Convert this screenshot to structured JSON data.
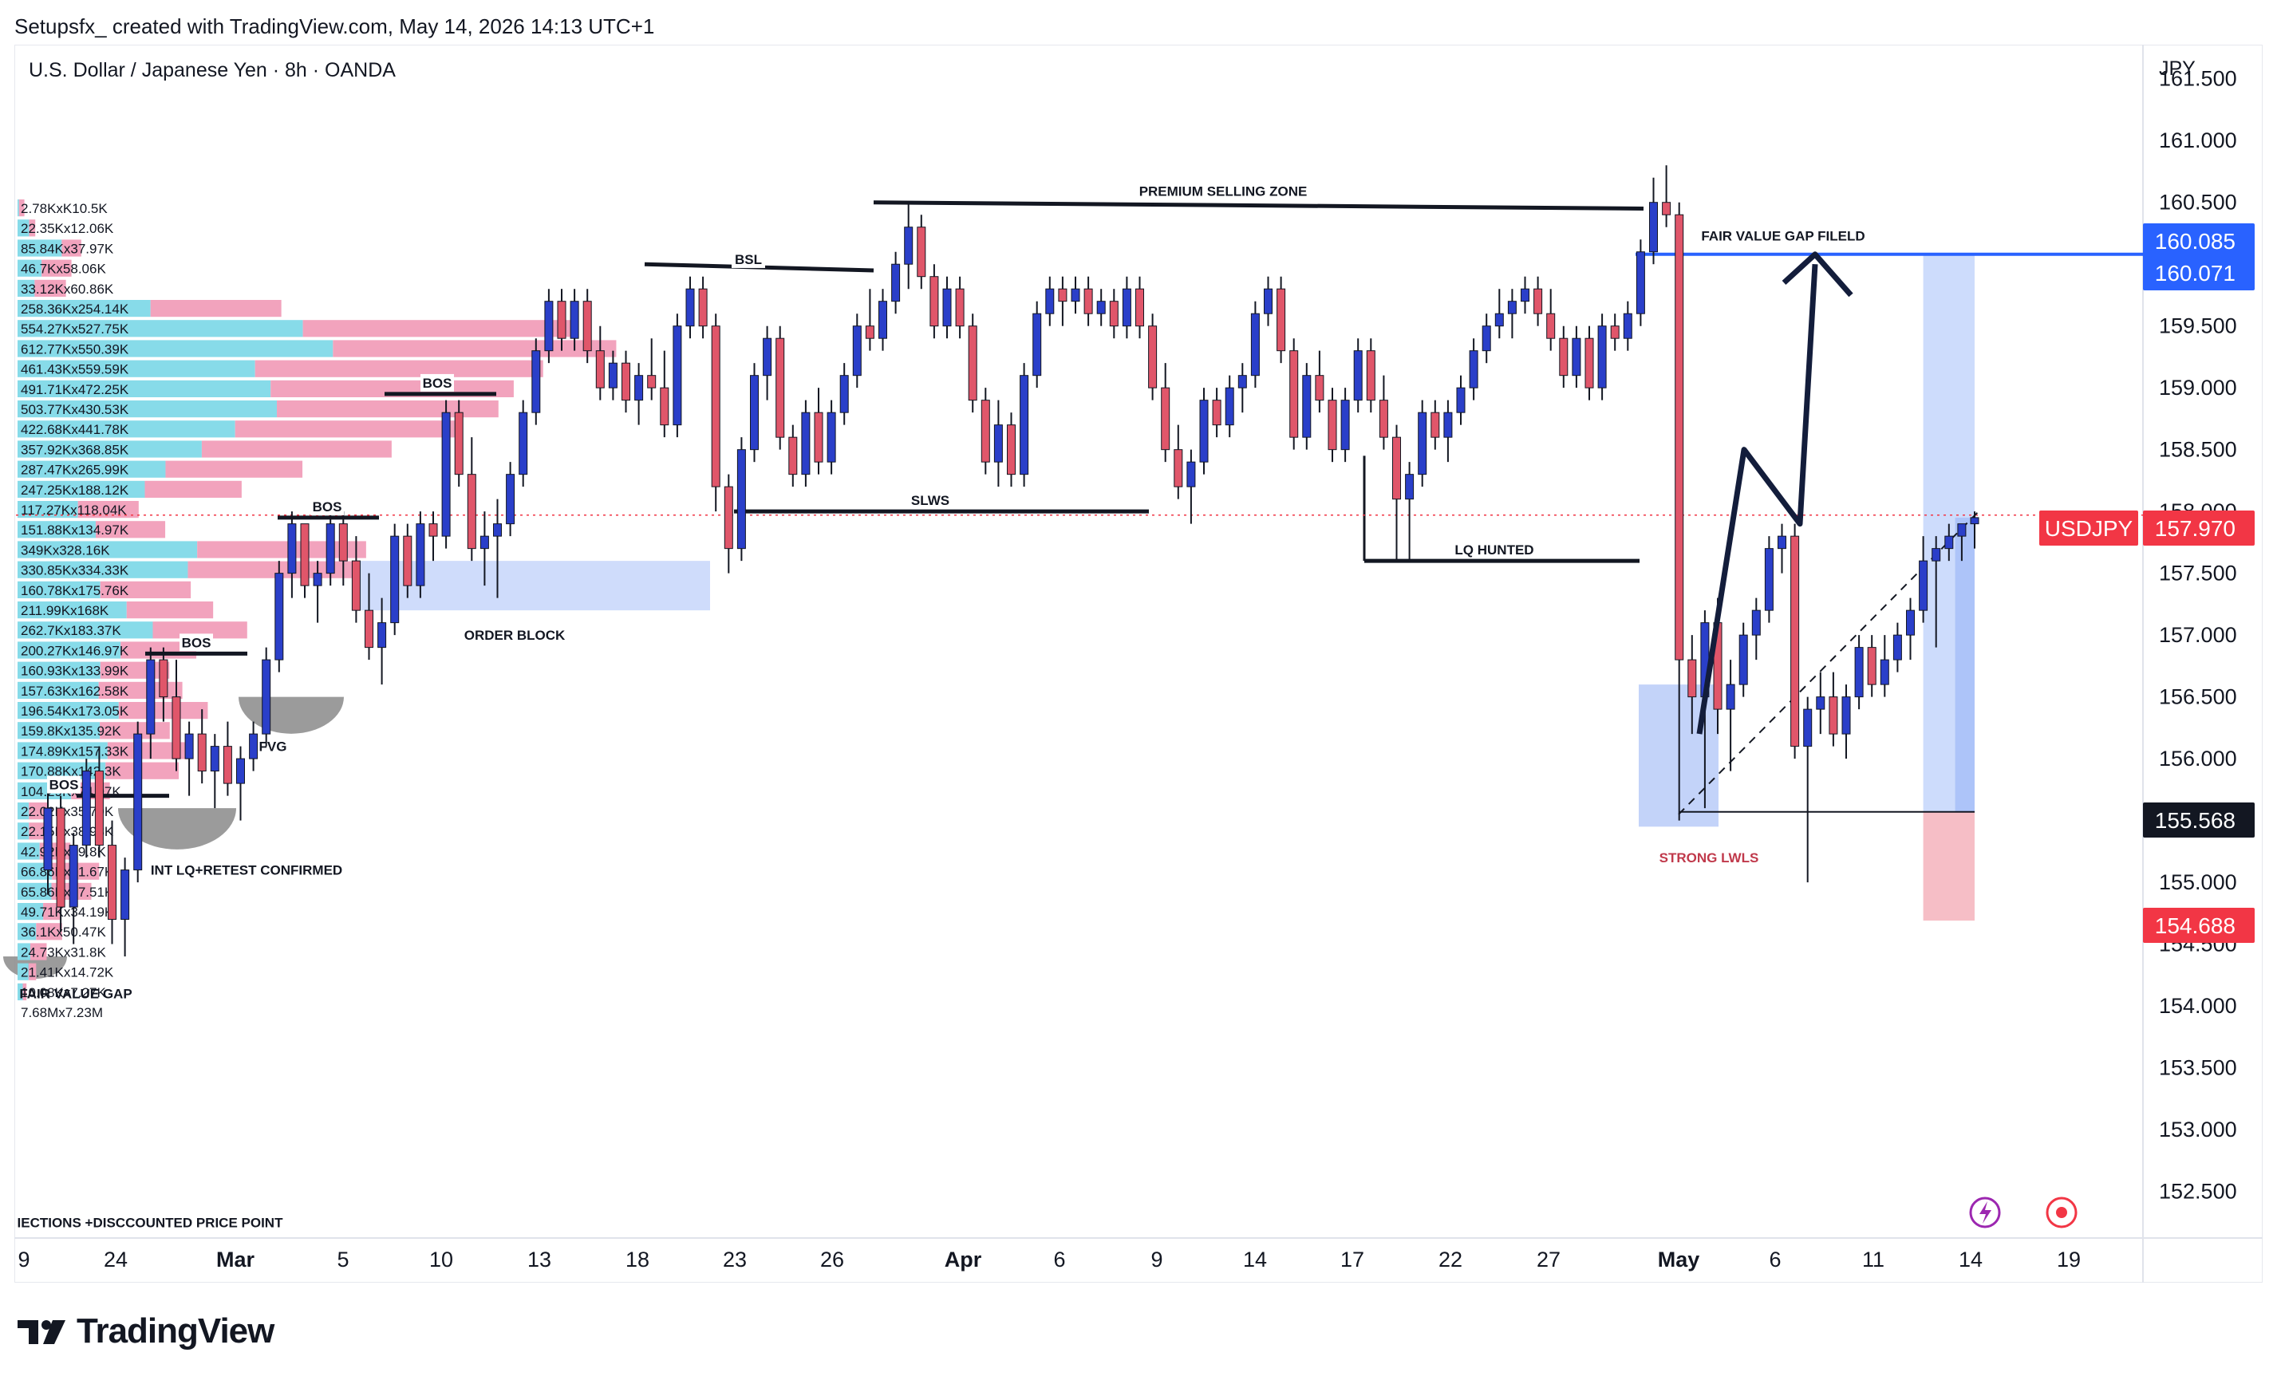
{
  "header": {
    "credit": "Setupsfx_ created with TradingView.com, May 14, 2026 14:13 UTC+1",
    "symbol_title": "U.S. Dollar / Japanese Yen · 8h · OANDA"
  },
  "brand": {
    "name": "TradingView",
    "logo_icon": "tradingview-logo-icon"
  },
  "chart_data": {
    "type": "candlestick",
    "symbol": "USDJPY",
    "currency_label": "JPY",
    "y_axis_ticks": [
      "161.500",
      "161.000",
      "160.500",
      "160.000",
      "159.500",
      "159.000",
      "158.500",
      "158.000",
      "157.500",
      "157.000",
      "156.500",
      "156.000",
      "155.500",
      "155.000",
      "154.500",
      "154.000",
      "153.500",
      "153.000",
      "152.500"
    ],
    "ylim": [
      152.2,
      161.75
    ],
    "x_axis_ticks": [
      "9",
      "24",
      "Mar",
      "5",
      "10",
      "13",
      "18",
      "23",
      "26",
      "Apr",
      "6",
      "9",
      "14",
      "17",
      "22",
      "27",
      "May",
      "6",
      "11",
      "14",
      "19"
    ],
    "bold_x_ticks": [
      "Mar",
      "Apr",
      "May"
    ],
    "price_labels": [
      {
        "value": "160.085",
        "color": "#2962ff"
      },
      {
        "value": "160.071",
        "color": "#2962ff"
      },
      {
        "value": "157.970",
        "color": "#f23645",
        "prefix": "USDJPY"
      },
      {
        "value": "155.568",
        "color": "#131722"
      },
      {
        "value": "154.688",
        "color": "#f23645"
      }
    ],
    "last_price": 157.97,
    "candles": [
      [
        155.1,
        155.8,
        154.9,
        155.6
      ],
      [
        155.6,
        155.7,
        154.6,
        154.8
      ],
      [
        154.8,
        155.4,
        154.5,
        155.3
      ],
      [
        155.3,
        156.0,
        155.2,
        155.9
      ],
      [
        155.9,
        156.1,
        155.2,
        155.3
      ],
      [
        155.3,
        155.5,
        154.5,
        154.7
      ],
      [
        154.7,
        155.2,
        154.4,
        155.1
      ],
      [
        155.1,
        156.3,
        155.0,
        156.2
      ],
      [
        156.2,
        156.9,
        156.0,
        156.8
      ],
      [
        156.8,
        156.9,
        156.3,
        156.5
      ],
      [
        156.5,
        156.8,
        155.9,
        156.0
      ],
      [
        156.0,
        156.3,
        155.7,
        156.2
      ],
      [
        156.2,
        156.4,
        155.8,
        155.9
      ],
      [
        155.9,
        156.2,
        155.6,
        156.1
      ],
      [
        156.1,
        156.3,
        155.7,
        155.8
      ],
      [
        155.8,
        156.1,
        155.5,
        156.0
      ],
      [
        156.0,
        156.3,
        155.9,
        156.2
      ],
      [
        156.2,
        156.9,
        156.1,
        156.8
      ],
      [
        156.8,
        157.6,
        156.7,
        157.5
      ],
      [
        157.5,
        158.0,
        157.3,
        157.9
      ],
      [
        157.9,
        157.9,
        157.3,
        157.4
      ],
      [
        157.4,
        157.6,
        157.1,
        157.5
      ],
      [
        157.5,
        158.0,
        157.4,
        157.9
      ],
      [
        157.9,
        158.0,
        157.4,
        157.6
      ],
      [
        157.6,
        157.8,
        157.1,
        157.2
      ],
      [
        157.2,
        157.5,
        156.8,
        156.9
      ],
      [
        156.9,
        157.3,
        156.6,
        157.1
      ],
      [
        157.1,
        157.9,
        157.0,
        157.8
      ],
      [
        157.8,
        157.9,
        157.3,
        157.4
      ],
      [
        157.4,
        158.0,
        157.3,
        157.9
      ],
      [
        157.9,
        158.0,
        157.6,
        157.8
      ],
      [
        157.8,
        158.9,
        157.7,
        158.8
      ],
      [
        158.8,
        158.9,
        158.2,
        158.3
      ],
      [
        158.3,
        158.6,
        157.6,
        157.7
      ],
      [
        157.7,
        158.0,
        157.4,
        157.8
      ],
      [
        157.8,
        158.1,
        157.3,
        157.9
      ],
      [
        157.9,
        158.4,
        157.8,
        158.3
      ],
      [
        158.3,
        158.9,
        158.2,
        158.8
      ],
      [
        158.8,
        159.4,
        158.7,
        159.3
      ],
      [
        159.3,
        159.8,
        159.2,
        159.7
      ],
      [
        159.7,
        159.8,
        159.3,
        159.4
      ],
      [
        159.4,
        159.8,
        159.3,
        159.7
      ],
      [
        159.7,
        159.8,
        159.2,
        159.3
      ],
      [
        159.3,
        159.5,
        158.9,
        159.0
      ],
      [
        159.0,
        159.3,
        158.9,
        159.2
      ],
      [
        159.2,
        159.3,
        158.8,
        158.9
      ],
      [
        158.9,
        159.2,
        158.7,
        159.1
      ],
      [
        159.1,
        159.4,
        158.9,
        159.0
      ],
      [
        159.0,
        159.3,
        158.6,
        158.7
      ],
      [
        158.7,
        159.6,
        158.6,
        159.5
      ],
      [
        159.5,
        159.9,
        159.4,
        159.8
      ],
      [
        159.8,
        159.9,
        159.4,
        159.5
      ],
      [
        159.5,
        159.6,
        158.0,
        158.2
      ],
      [
        158.2,
        158.3,
        157.5,
        157.7
      ],
      [
        157.7,
        158.6,
        157.6,
        158.5
      ],
      [
        158.5,
        159.2,
        158.4,
        159.1
      ],
      [
        159.1,
        159.5,
        158.9,
        159.4
      ],
      [
        159.4,
        159.5,
        158.5,
        158.6
      ],
      [
        158.6,
        158.7,
        158.2,
        158.3
      ],
      [
        158.3,
        158.9,
        158.2,
        158.8
      ],
      [
        158.8,
        159.0,
        158.3,
        158.4
      ],
      [
        158.4,
        158.9,
        158.3,
        158.8
      ],
      [
        158.8,
        159.2,
        158.7,
        159.1
      ],
      [
        159.1,
        159.6,
        159.0,
        159.5
      ],
      [
        159.5,
        159.8,
        159.3,
        159.4
      ],
      [
        159.4,
        159.8,
        159.3,
        159.7
      ],
      [
        159.7,
        160.1,
        159.6,
        160.0
      ],
      [
        160.0,
        160.5,
        159.8,
        160.3
      ],
      [
        160.3,
        160.4,
        159.8,
        159.9
      ],
      [
        159.9,
        160.0,
        159.4,
        159.5
      ],
      [
        159.5,
        159.9,
        159.4,
        159.8
      ],
      [
        159.8,
        159.9,
        159.4,
        159.5
      ],
      [
        159.5,
        159.6,
        158.8,
        158.9
      ],
      [
        158.9,
        159.0,
        158.3,
        158.4
      ],
      [
        158.4,
        158.9,
        158.2,
        158.7
      ],
      [
        158.7,
        158.8,
        158.2,
        158.3
      ],
      [
        158.3,
        159.2,
        158.2,
        159.1
      ],
      [
        159.1,
        159.7,
        159.0,
        159.6
      ],
      [
        159.6,
        159.9,
        159.5,
        159.8
      ],
      [
        159.8,
        159.9,
        159.5,
        159.7
      ],
      [
        159.7,
        159.9,
        159.6,
        159.8
      ],
      [
        159.8,
        159.9,
        159.5,
        159.6
      ],
      [
        159.6,
        159.8,
        159.5,
        159.7
      ],
      [
        159.7,
        159.8,
        159.4,
        159.5
      ],
      [
        159.5,
        159.9,
        159.4,
        159.8
      ],
      [
        159.8,
        159.9,
        159.4,
        159.5
      ],
      [
        159.5,
        159.6,
        158.9,
        159.0
      ],
      [
        159.0,
        159.2,
        158.4,
        158.5
      ],
      [
        158.5,
        158.7,
        158.1,
        158.2
      ],
      [
        158.2,
        158.5,
        157.9,
        158.4
      ],
      [
        158.4,
        159.0,
        158.3,
        158.9
      ],
      [
        158.9,
        159.0,
        158.6,
        158.7
      ],
      [
        158.7,
        159.1,
        158.6,
        159.0
      ],
      [
        159.0,
        159.2,
        158.8,
        159.1
      ],
      [
        159.1,
        159.7,
        159.0,
        159.6
      ],
      [
        159.6,
        159.9,
        159.5,
        159.8
      ],
      [
        159.8,
        159.9,
        159.2,
        159.3
      ],
      [
        159.3,
        159.4,
        158.5,
        158.6
      ],
      [
        158.6,
        159.2,
        158.5,
        159.1
      ],
      [
        159.1,
        159.3,
        158.8,
        158.9
      ],
      [
        158.9,
        159.0,
        158.4,
        158.5
      ],
      [
        158.5,
        159.0,
        158.4,
        158.9
      ],
      [
        158.9,
        159.4,
        158.8,
        159.3
      ],
      [
        159.3,
        159.4,
        158.8,
        158.9
      ],
      [
        158.9,
        159.1,
        158.5,
        158.6
      ],
      [
        158.6,
        158.7,
        157.6,
        158.1
      ],
      [
        158.1,
        158.4,
        157.6,
        158.3
      ],
      [
        158.3,
        158.9,
        158.2,
        158.8
      ],
      [
        158.8,
        158.9,
        158.5,
        158.6
      ],
      [
        158.6,
        158.9,
        158.4,
        158.8
      ],
      [
        158.8,
        159.1,
        158.7,
        159.0
      ],
      [
        159.0,
        159.4,
        158.9,
        159.3
      ],
      [
        159.3,
        159.6,
        159.2,
        159.5
      ],
      [
        159.5,
        159.8,
        159.4,
        159.6
      ],
      [
        159.6,
        159.8,
        159.4,
        159.7
      ],
      [
        159.7,
        159.9,
        159.6,
        159.8
      ],
      [
        159.8,
        159.9,
        159.5,
        159.6
      ],
      [
        159.6,
        159.8,
        159.3,
        159.4
      ],
      [
        159.4,
        159.5,
        159.0,
        159.1
      ],
      [
        159.1,
        159.5,
        159.0,
        159.4
      ],
      [
        159.4,
        159.5,
        158.9,
        159.0
      ],
      [
        159.0,
        159.6,
        158.9,
        159.5
      ],
      [
        159.5,
        159.6,
        159.3,
        159.4
      ],
      [
        159.4,
        159.7,
        159.3,
        159.6
      ],
      [
        159.6,
        160.2,
        159.5,
        160.1
      ],
      [
        160.1,
        160.7,
        160.0,
        160.5
      ],
      [
        160.5,
        160.8,
        160.3,
        160.4
      ],
      [
        160.4,
        160.5,
        155.5,
        156.8
      ],
      [
        156.8,
        157.0,
        156.2,
        156.5
      ],
      [
        156.5,
        157.2,
        155.6,
        157.1
      ],
      [
        157.1,
        157.3,
        156.2,
        156.4
      ],
      [
        156.4,
        156.8,
        155.9,
        156.6
      ],
      [
        156.6,
        157.1,
        156.5,
        157.0
      ],
      [
        157.0,
        157.3,
        156.8,
        157.2
      ],
      [
        157.2,
        157.8,
        157.1,
        157.7
      ],
      [
        157.7,
        157.9,
        157.5,
        157.8
      ],
      [
        157.8,
        157.9,
        156.0,
        156.1
      ],
      [
        156.1,
        156.5,
        155.0,
        156.4
      ],
      [
        156.4,
        156.7,
        156.2,
        156.5
      ],
      [
        156.5,
        156.7,
        156.1,
        156.2
      ],
      [
        156.2,
        156.6,
        156.0,
        156.5
      ],
      [
        156.5,
        157.0,
        156.4,
        156.9
      ],
      [
        156.9,
        157.0,
        156.5,
        156.6
      ],
      [
        156.6,
        157.0,
        156.5,
        156.8
      ],
      [
        156.8,
        157.1,
        156.7,
        157.0
      ],
      [
        157.0,
        157.3,
        156.8,
        157.2
      ],
      [
        157.2,
        157.8,
        157.1,
        157.6
      ],
      [
        157.6,
        157.8,
        156.9,
        157.7
      ],
      [
        157.7,
        157.9,
        157.6,
        157.8
      ],
      [
        157.8,
        157.9,
        157.6,
        157.9
      ],
      [
        157.9,
        158.0,
        157.7,
        157.95
      ]
    ]
  },
  "volume_profile": [
    {
      "label": "2.78KxK10.5K",
      "up": 2.78,
      "down": 10.5
    },
    {
      "label": "22.35Kx12.06K",
      "up": 22.35,
      "down": 12.06
    },
    {
      "label": "85.84Kx37.97K",
      "up": 85.84,
      "down": 37.97
    },
    {
      "label": "46.7Kx58.06K",
      "up": 46.7,
      "down": 58.06
    },
    {
      "label": "33.12Kx60.86K",
      "up": 33.12,
      "down": 60.86
    },
    {
      "label": "258.36Kx254.14K",
      "up": 258.36,
      "down": 254.14
    },
    {
      "label": "554.27Kx527.75K",
      "up": 554.27,
      "down": 527.75
    },
    {
      "label": "612.77Kx550.39K",
      "up": 612.77,
      "down": 550.39
    },
    {
      "label": "461.43Kx559.59K",
      "up": 461.43,
      "down": 559.59
    },
    {
      "label": "491.71Kx472.25K",
      "up": 491.71,
      "down": 472.25
    },
    {
      "label": "503.77Kx430.53K",
      "up": 503.77,
      "down": 430.53
    },
    {
      "label": "422.68Kx441.78K",
      "up": 422.68,
      "down": 441.78
    },
    {
      "label": "357.92Kx368.85K",
      "up": 357.92,
      "down": 368.85
    },
    {
      "label": "287.47Kx265.99K",
      "up": 287.47,
      "down": 265.99
    },
    {
      "label": "247.25Kx188.12K",
      "up": 247.25,
      "down": 188.12
    },
    {
      "label": "117.27Kx118.04K",
      "up": 117.27,
      "down": 118.04
    },
    {
      "label": "151.88Kx134.97K",
      "up": 151.88,
      "down": 134.97
    },
    {
      "label": "349Kx328.16K",
      "up": 349,
      "down": 328.16
    },
    {
      "label": "330.85Kx334.33K",
      "up": 330.85,
      "down": 334.33
    },
    {
      "label": "160.78Kx175.76K",
      "up": 160.78,
      "down": 175.76
    },
    {
      "label": "211.99Kx168K",
      "up": 211.99,
      "down": 168
    },
    {
      "label": "262.7Kx183.37K",
      "up": 262.7,
      "down": 183.37
    },
    {
      "label": "200.27Kx146.97K",
      "up": 200.27,
      "down": 146.97
    },
    {
      "label": "160.93Kx133.99K",
      "up": 160.93,
      "down": 133.99
    },
    {
      "label": "157.63Kx162.58K",
      "up": 157.63,
      "down": 162.58
    },
    {
      "label": "196.54Kx173.05K",
      "up": 196.54,
      "down": 173.05
    },
    {
      "label": "159.8Kx135.92K",
      "up": 159.8,
      "down": 135.92
    },
    {
      "label": "174.89Kx157.33K",
      "up": 174.89,
      "down": 157.33
    },
    {
      "label": "170.88Kx142.3K",
      "up": 170.88,
      "down": 142.3
    },
    {
      "label": "104.29Kx74.97K",
      "up": 104.29,
      "down": 74.97
    },
    {
      "label": "22.02Kx35.79K",
      "up": 22.02,
      "down": 35.79
    },
    {
      "label": "22.15Kx38.98K",
      "up": 22.15,
      "down": 38.98
    },
    {
      "label": "42.92Kx59.8K",
      "up": 42.92,
      "down": 59.8
    },
    {
      "label": "66.86Kx91.67K",
      "up": 66.86,
      "down": 91.67
    },
    {
      "label": "65.86Kx77.51K",
      "up": 65.86,
      "down": 77.51
    },
    {
      "label": "49.71Kx34.19K",
      "up": 49.71,
      "down": 34.19
    },
    {
      "label": "36.1Kx50.47K",
      "up": 36.1,
      "down": 50.47
    },
    {
      "label": "24.73Kx31.8K",
      "up": 24.73,
      "down": 31.8
    },
    {
      "label": "21.41Kx14.72K",
      "up": 21.41,
      "down": 14.72
    },
    {
      "label": "10.08Kx7.27K",
      "up": 10.08,
      "down": 7.27
    },
    {
      "label": "7.68Mx7.23M",
      "up": 0,
      "down": 0
    }
  ],
  "annotations": [
    {
      "text": "BOS",
      "price": 158.95
    },
    {
      "text": "BOS",
      "price": 157.95
    },
    {
      "text": "BOS",
      "price": 156.85
    },
    {
      "text": "BOS",
      "price": 155.7
    },
    {
      "text": "BSL",
      "price": 159.95
    },
    {
      "text": "PREMIUM SELLING ZONE",
      "price": 160.5
    },
    {
      "text": "SLWS",
      "price": 158.0
    },
    {
      "text": "LQ HUNTED",
      "price": 157.6
    },
    {
      "text": "ORDER BLOCK",
      "price": 157.0
    },
    {
      "text": "FVG",
      "price": 156.1
    },
    {
      "text": "INT LQ+RETEST CONFIRMED",
      "price": 155.1
    },
    {
      "text": "FAIR VALUE GAP",
      "price": 154.1
    },
    {
      "text": "IECTIONS +DISCCOUNTED PRICE POINT",
      "price": 152.25
    },
    {
      "text": "FAIR VALUE GAP FILELD",
      "price": 160.1
    },
    {
      "text": "STRONG LWLS",
      "price": 155.2
    }
  ],
  "toolbar_icons": [
    "lightning-icon",
    "record-icon"
  ],
  "colors": {
    "up": "#2a3fc9",
    "down": "#e0566a",
    "profile_up": "#87dbe9",
    "profile_down": "#f2a3bd",
    "target_zone": "#bcd0fb",
    "stop_zone": "#f5b7c0",
    "order_block": "#cad8fb",
    "level_line": "#131722",
    "blue_line": "#2962ff"
  }
}
